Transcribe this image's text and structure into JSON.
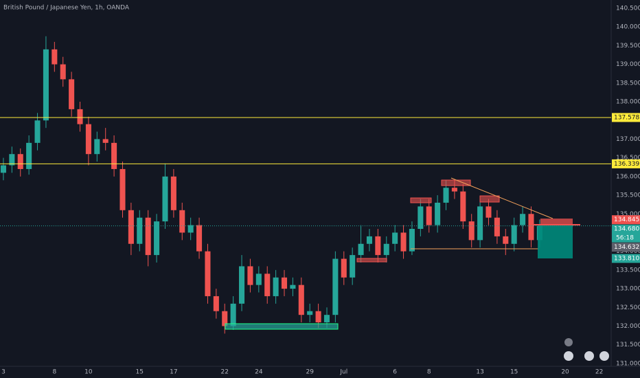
{
  "chart_data": {
    "type": "candlestick",
    "title": "British Pound / Japanese Yen, 1h, OANDA",
    "up_color": "#26a69a",
    "down_color": "#ef5350",
    "grid": false,
    "xlim": [
      -0.2,
      35.7
    ],
    "ylim": [
      130.98,
      140.72
    ],
    "xticks": [
      {
        "value": 0,
        "label": "3"
      },
      {
        "value": 3,
        "label": "8"
      },
      {
        "value": 5,
        "label": "10"
      },
      {
        "value": 8,
        "label": "15"
      },
      {
        "value": 10,
        "label": "17"
      },
      {
        "value": 13,
        "label": "22"
      },
      {
        "value": 15,
        "label": "24"
      },
      {
        "value": 18,
        "label": "29"
      },
      {
        "value": 20,
        "label": "Jul"
      },
      {
        "value": 23,
        "label": "6"
      },
      {
        "value": 25,
        "label": "8"
      },
      {
        "value": 28,
        "label": "13"
      },
      {
        "value": 30,
        "label": "15"
      },
      {
        "value": 33,
        "label": "20"
      },
      {
        "value": 35,
        "label": "22"
      }
    ],
    "yticks": [
      {
        "value": 131,
        "label": "131.000"
      },
      {
        "value": 131.5,
        "label": "131.500"
      },
      {
        "value": 132,
        "label": "132.000"
      },
      {
        "value": 132.5,
        "label": "132.500"
      },
      {
        "value": 133,
        "label": "133.000"
      },
      {
        "value": 133.5,
        "label": "133.500"
      },
      {
        "value": 134,
        "label": "134.000"
      },
      {
        "value": 134.5,
        "label": "134.500"
      },
      {
        "value": 135,
        "label": "135.000"
      },
      {
        "value": 135.5,
        "label": "135.500"
      },
      {
        "value": 136,
        "label": "136.000"
      },
      {
        "value": 136.5,
        "label": "136.500"
      },
      {
        "value": 137,
        "label": "137.000"
      },
      {
        "value": 137.5,
        "label": "137.500"
      },
      {
        "value": 138,
        "label": "138.000"
      },
      {
        "value": 138.5,
        "label": "138.500"
      },
      {
        "value": 139,
        "label": "139.000"
      },
      {
        "value": 139.5,
        "label": "139.500"
      },
      {
        "value": 140,
        "label": "140.000"
      },
      {
        "value": 140.5,
        "label": "140.500"
      }
    ],
    "x": [
      0,
      0.5,
      1,
      1.5,
      2,
      2.5,
      3,
      3.5,
      4,
      4.5,
      5,
      5.5,
      6,
      6.5,
      7,
      7.5,
      8,
      8.5,
      9,
      9.5,
      10,
      10.5,
      11,
      11.5,
      12,
      12.5,
      13,
      13.5,
      14,
      14.5,
      15,
      15.5,
      16,
      16.5,
      17,
      17.5,
      18,
      18.5,
      19,
      19.5,
      20,
      20.5,
      21,
      21.5,
      22,
      22.5,
      23,
      23.5,
      24,
      24.5,
      25,
      25.5,
      26,
      26.5,
      27,
      27.5,
      28,
      28.5,
      29,
      29.5,
      30,
      30.5,
      31,
      31.5
    ],
    "open": [
      136.1,
      136.3,
      136.6,
      136.2,
      136.9,
      137.5,
      139.4,
      139.0,
      138.6,
      137.8,
      137.4,
      136.6,
      137.0,
      136.9,
      136.2,
      135.1,
      134.2,
      134.9,
      133.9,
      134.8,
      136.0,
      135.1,
      134.5,
      134.7,
      134.0,
      132.8,
      132.4,
      132.0,
      132.6,
      133.6,
      133.1,
      133.4,
      132.8,
      133.3,
      133.0,
      133.1,
      132.3,
      132.4,
      132.1,
      132.3,
      133.8,
      133.3,
      133.9,
      134.2,
      134.4,
      133.9,
      134.2,
      134.5,
      134.0,
      134.6,
      135.2,
      134.7,
      135.3,
      135.7,
      135.6,
      134.8,
      134.3,
      135.2,
      134.9,
      134.4,
      134.2,
      134.7,
      135.0,
      134.3
    ],
    "high": [
      136.5,
      136.8,
      136.75,
      137.1,
      137.7,
      139.75,
      139.6,
      139.2,
      138.8,
      138.0,
      137.6,
      137.2,
      137.3,
      137.1,
      136.4,
      135.3,
      135.1,
      135.1,
      135.0,
      136.35,
      136.2,
      135.3,
      134.9,
      134.9,
      134.2,
      133.0,
      132.6,
      132.8,
      133.9,
      133.8,
      133.6,
      133.6,
      133.5,
      133.5,
      133.3,
      133.3,
      132.6,
      132.6,
      132.5,
      134.0,
      134.0,
      134.1,
      134.7,
      134.6,
      134.6,
      134.4,
      134.7,
      134.7,
      134.8,
      135.4,
      135.4,
      135.5,
      135.9,
      135.9,
      135.8,
      135.0,
      135.4,
      135.4,
      135.1,
      134.6,
      134.9,
      135.2,
      135.2,
      134.85
    ],
    "low": [
      135.9,
      136.1,
      136.0,
      136.05,
      136.7,
      137.3,
      138.8,
      138.4,
      137.6,
      137.2,
      136.3,
      136.4,
      136.7,
      136.0,
      134.9,
      133.9,
      134.0,
      133.6,
      133.7,
      134.6,
      134.9,
      134.3,
      134.3,
      133.8,
      132.6,
      132.2,
      131.8,
      131.9,
      132.4,
      132.9,
      132.9,
      132.6,
      132.6,
      132.8,
      132.8,
      132.1,
      132.1,
      131.95,
      131.95,
      132.1,
      133.1,
      133.1,
      133.7,
      134.0,
      133.7,
      133.7,
      134.0,
      133.8,
      133.9,
      134.4,
      134.5,
      134.5,
      135.1,
      135.4,
      134.6,
      134.1,
      134.1,
      134.7,
      134.2,
      133.9,
      134.0,
      134.5,
      134.1,
      134.1
    ],
    "close": [
      136.3,
      136.6,
      136.2,
      136.9,
      137.5,
      139.4,
      139.0,
      138.6,
      137.8,
      137.4,
      136.6,
      137.0,
      136.9,
      136.2,
      135.1,
      134.2,
      134.9,
      133.9,
      134.8,
      136.0,
      135.1,
      134.5,
      134.7,
      134.0,
      132.8,
      132.4,
      132.0,
      132.6,
      133.6,
      133.1,
      133.4,
      132.8,
      133.3,
      133.0,
      133.1,
      132.3,
      132.4,
      132.1,
      132.3,
      133.8,
      133.3,
      133.9,
      134.2,
      134.4,
      133.9,
      134.2,
      134.5,
      134.0,
      134.6,
      135.2,
      134.7,
      135.3,
      135.7,
      135.6,
      134.8,
      134.3,
      135.2,
      134.9,
      134.4,
      134.2,
      134.7,
      135.0,
      134.3,
      134.68
    ],
    "price_labels": [
      {
        "value": 137.578,
        "label": "137.578",
        "color": "#ffeb3b",
        "line": true
      },
      {
        "value": 136.339,
        "label": "136.339",
        "color": "#ffeb3b",
        "line": true
      },
      {
        "value": 134.845,
        "label": "134.845",
        "color": "#ef5350"
      },
      {
        "value": 134.68,
        "label": "134.680",
        "color": "#26a69a",
        "last": true
      },
      {
        "value": 134.632,
        "label": "134.632",
        "color": "#5d606b"
      },
      {
        "value": 133.81,
        "label": "133.810",
        "color": "#26a69a"
      }
    ],
    "countdown": "56:18"
  }
}
